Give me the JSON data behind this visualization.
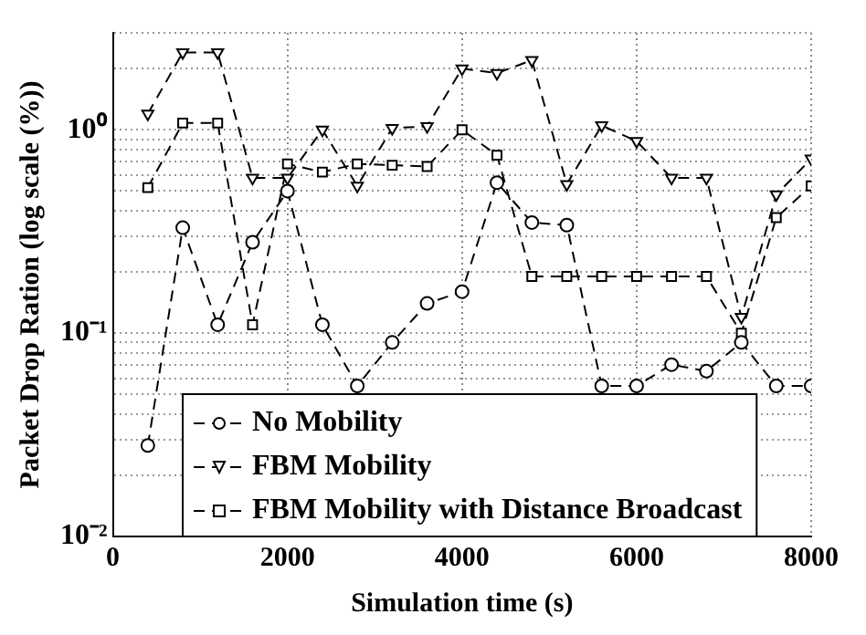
{
  "chart_data": {
    "type": "line",
    "xlabel": "Simulation time (s)",
    "ylabel": "Packet Drop Ration (log scale (%))",
    "x": [
      400,
      800,
      1200,
      1600,
      2000,
      2400,
      2800,
      3200,
      3600,
      4000,
      4400,
      4800,
      5200,
      5600,
      6000,
      6400,
      6800,
      7200,
      7600,
      8000
    ],
    "series": [
      {
        "name": "No Mobility",
        "color": "#000000",
        "marker": "circle",
        "values": [
          0.028,
          0.33,
          0.11,
          0.28,
          0.5,
          0.11,
          0.055,
          0.09,
          0.14,
          0.16,
          0.55,
          0.35,
          0.34,
          0.055,
          0.055,
          0.07,
          0.065,
          0.09,
          0.055,
          0.055
        ]
      },
      {
        "name": "FBM Mobility",
        "color": "#000000",
        "marker": "triangle",
        "values": [
          1.2,
          2.4,
          2.4,
          0.58,
          0.58,
          1.0,
          0.53,
          1.02,
          1.04,
          2.0,
          1.9,
          2.2,
          0.54,
          1.05,
          0.88,
          0.58,
          0.58,
          0.12,
          0.48,
          0.72
        ]
      },
      {
        "name": "FBM Mobility with Distance Broadcast",
        "color": "#000000",
        "marker": "square",
        "values": [
          0.52,
          1.08,
          1.08,
          0.11,
          0.68,
          0.62,
          0.68,
          0.67,
          0.66,
          1.0,
          0.75,
          0.19,
          0.19,
          0.19,
          0.19,
          0.19,
          0.19,
          0.1,
          0.37,
          0.53
        ]
      }
    ],
    "xlim": [
      0,
      8000
    ],
    "xticks": [
      0,
      2000,
      4000,
      6000,
      8000
    ],
    "ylim": [
      0.01,
      3
    ],
    "yticks": [
      {
        "value": 0.01,
        "label": "10⁻²"
      },
      {
        "value": 0.02,
        "label": null
      },
      {
        "value": 0.03,
        "label": null
      },
      {
        "value": 0.04,
        "label": null
      },
      {
        "value": 0.05,
        "label": null
      },
      {
        "value": 0.06,
        "label": null
      },
      {
        "value": 0.07,
        "label": null
      },
      {
        "value": 0.08,
        "label": null
      },
      {
        "value": 0.09,
        "label": null
      },
      {
        "value": 0.1,
        "label": "10⁻¹"
      },
      {
        "value": 0.2,
        "label": null
      },
      {
        "value": 0.3,
        "label": null
      },
      {
        "value": 0.4,
        "label": null
      },
      {
        "value": 0.5,
        "label": null
      },
      {
        "value": 0.6,
        "label": null
      },
      {
        "value": 0.7,
        "label": null
      },
      {
        "value": 0.8,
        "label": null
      },
      {
        "value": 0.9,
        "label": null
      },
      {
        "value": 1,
        "label": "10⁰"
      },
      {
        "value": 2,
        "label": null
      },
      {
        "value": 3,
        "label": null
      }
    ],
    "log": "y",
    "grid": true,
    "legend": "bottom",
    "line_style": "dashed"
  }
}
